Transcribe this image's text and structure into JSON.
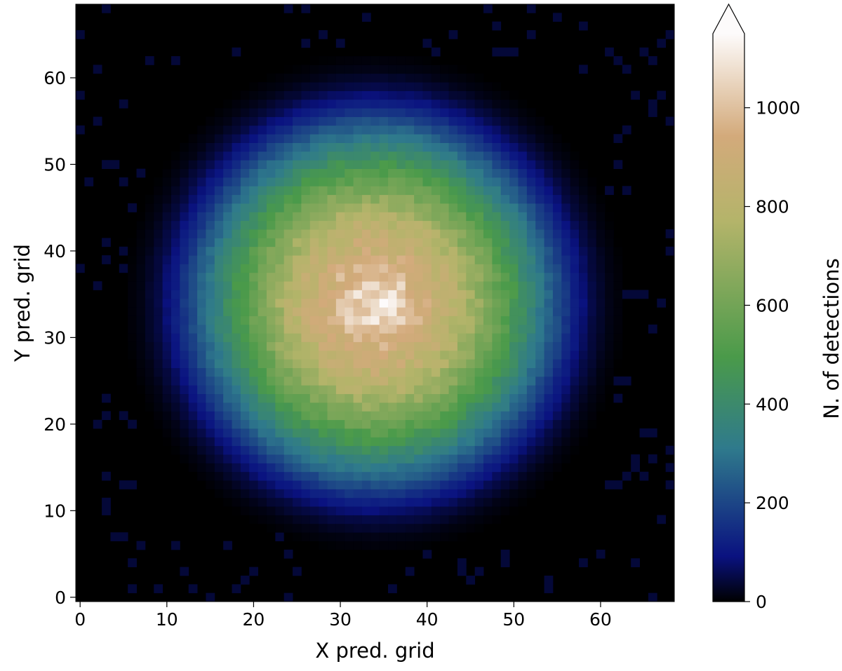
{
  "chart_data": {
    "type": "heatmap",
    "title": "",
    "xlabel": "X pred. grid",
    "ylabel": "Y pred. grid",
    "xlim": [
      -0.5,
      68.5
    ],
    "ylim": [
      -0.5,
      68.5
    ],
    "x_ticks": [
      0,
      10,
      20,
      30,
      40,
      50,
      60
    ],
    "y_ticks": [
      0,
      10,
      20,
      30,
      40,
      50,
      60
    ],
    "x_tick_labels": [
      "0",
      "10",
      "20",
      "30",
      "40",
      "50",
      "60"
    ],
    "y_tick_labels": [
      "0",
      "10",
      "20",
      "30",
      "40",
      "50",
      "60"
    ],
    "grid": false,
    "legend": "none",
    "colormap": "gist_earth",
    "colorbar": {
      "label": "N. of detections",
      "range": [
        0,
        1150
      ],
      "extend": "max",
      "ticks": [
        0,
        200,
        400,
        600,
        800,
        1000
      ],
      "tick_labels": [
        "0",
        "200",
        "400",
        "600",
        "800",
        "1000"
      ],
      "colors": [
        "#000000",
        "#0a1280",
        "#2f7a8c",
        "#4a9a4a",
        "#b4b46a",
        "#d3aa7b",
        "#fdfbfb"
      ],
      "color_stops": [
        0,
        0.08,
        0.27,
        0.43,
        0.67,
        0.82,
        1
      ]
    },
    "grid_size": [
      69,
      69
    ],
    "distribution": {
      "model": "radial",
      "center": [
        34,
        34
      ],
      "peak_value": 1100,
      "radius_profile": [
        [
          0,
          1100
        ],
        [
          3,
          1030
        ],
        [
          6,
          900
        ],
        [
          9,
          820
        ],
        [
          12,
          680
        ],
        [
          14,
          580
        ],
        [
          17,
          420
        ],
        [
          20,
          270
        ],
        [
          23,
          120
        ],
        [
          25,
          50
        ],
        [
          27,
          15
        ],
        [
          29,
          0
        ]
      ],
      "background": 0,
      "sparse_edge_value": 40
    }
  }
}
